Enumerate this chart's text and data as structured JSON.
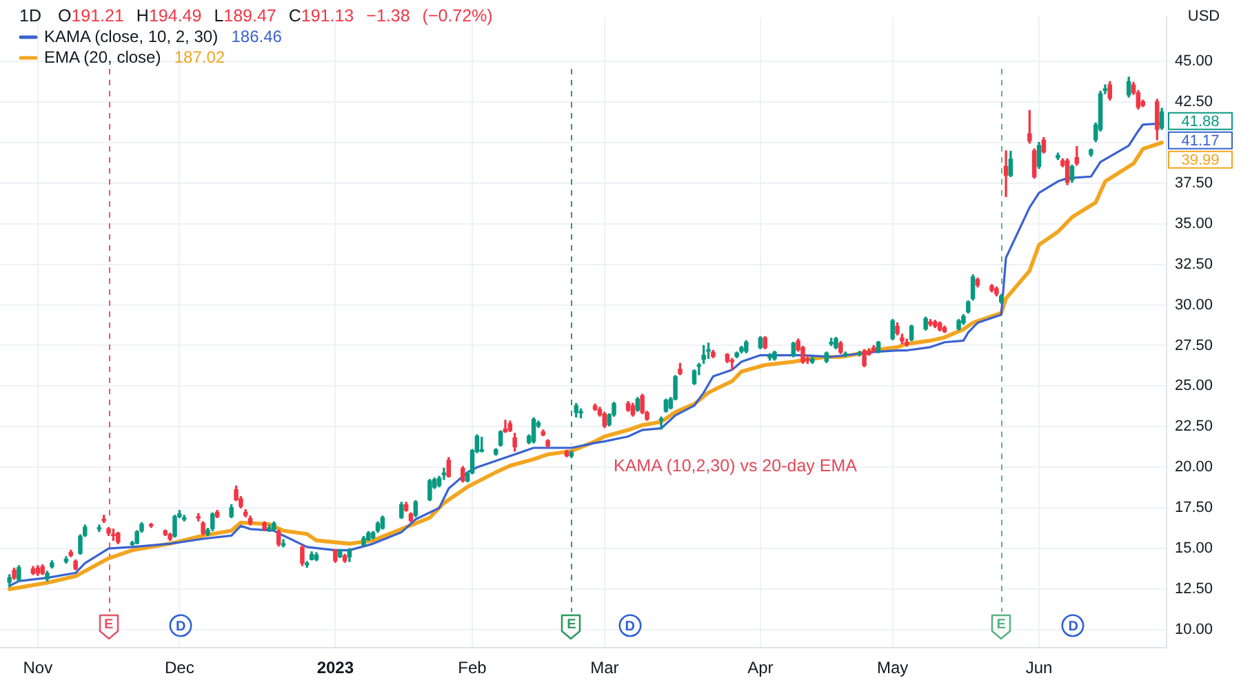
{
  "chart_data": {
    "type": "candlestick",
    "title": "1D",
    "subtitle": "O191.21 H194.49 L189.47 C191.13 −1.38 (−0.72%)",
    "ylabel": "USD",
    "x": [
      "2022-10-26",
      "2022-10-27",
      "2022-10-28",
      "2022-10-31",
      "2022-11-01",
      "2022-11-02",
      "2022-11-03",
      "2022-11-04",
      "2022-11-07",
      "2022-11-08",
      "2022-11-09",
      "2022-11-10",
      "2022-11-11",
      "2022-11-14",
      "2022-11-15",
      "2022-11-16",
      "2022-11-17",
      "2022-11-18",
      "2022-11-21",
      "2022-11-22",
      "2022-11-23",
      "2022-11-25",
      "2022-11-28",
      "2022-11-29",
      "2022-11-30",
      "2022-12-01",
      "2022-12-02",
      "2022-12-05",
      "2022-12-06",
      "2022-12-07",
      "2022-12-08",
      "2022-12-09",
      "2022-12-12",
      "2022-12-13",
      "2022-12-14",
      "2022-12-15",
      "2022-12-16",
      "2022-12-19",
      "2022-12-20",
      "2022-12-21",
      "2022-12-22",
      "2022-12-23",
      "2022-12-27",
      "2022-12-28",
      "2022-12-29",
      "2022-12-30",
      "2023-01-03",
      "2023-01-04",
      "2023-01-05",
      "2023-01-06",
      "2023-01-09",
      "2023-01-10",
      "2023-01-11",
      "2023-01-12",
      "2023-01-13",
      "2023-01-17",
      "2023-01-18",
      "2023-01-19",
      "2023-01-20",
      "2023-01-23",
      "2023-01-24",
      "2023-01-25",
      "2023-01-26",
      "2023-01-27",
      "2023-01-30",
      "2023-01-31",
      "2023-02-01",
      "2023-02-02",
      "2023-02-03",
      "2023-02-06",
      "2023-02-07",
      "2023-02-08",
      "2023-02-09",
      "2023-02-10",
      "2023-02-13",
      "2023-02-14",
      "2023-02-15",
      "2023-02-16",
      "2023-02-17",
      "2023-02-21",
      "2023-02-22",
      "2023-02-23",
      "2023-02-24",
      "2023-02-27",
      "2023-02-28",
      "2023-03-01",
      "2023-03-02",
      "2023-03-03",
      "2023-03-06",
      "2023-03-07",
      "2023-03-08",
      "2023-03-09",
      "2023-03-10",
      "2023-03-13",
      "2023-03-14",
      "2023-03-15",
      "2023-03-16",
      "2023-03-17",
      "2023-03-20",
      "2023-03-21",
      "2023-03-22",
      "2023-03-23",
      "2023-03-24",
      "2023-03-27",
      "2023-03-28",
      "2023-03-29",
      "2023-03-30",
      "2023-03-31",
      "2023-04-03",
      "2023-04-04",
      "2023-04-05",
      "2023-04-06",
      "2023-04-10",
      "2023-04-11",
      "2023-04-12",
      "2023-04-13",
      "2023-04-14",
      "2023-04-17",
      "2023-04-18",
      "2023-04-19",
      "2023-04-20",
      "2023-04-21",
      "2023-04-24",
      "2023-04-25",
      "2023-04-26",
      "2023-04-27",
      "2023-04-28",
      "2023-05-01",
      "2023-05-02",
      "2023-05-03",
      "2023-05-04",
      "2023-05-05",
      "2023-05-08",
      "2023-05-09",
      "2023-05-10",
      "2023-05-11",
      "2023-05-12",
      "2023-05-15",
      "2023-05-16",
      "2023-05-17",
      "2023-05-18",
      "2023-05-19",
      "2023-05-22",
      "2023-05-23",
      "2023-05-24",
      "2023-05-25",
      "2023-05-26",
      "2023-05-30",
      "2023-05-31",
      "2023-06-01",
      "2023-06-02",
      "2023-06-05",
      "2023-06-06",
      "2023-06-07",
      "2023-06-08",
      "2023-06-09",
      "2023-06-12",
      "2023-06-13",
      "2023-06-14",
      "2023-06-15",
      "2023-06-16",
      "2023-06-20",
      "2023-06-21",
      "2023-06-22",
      "2023-06-23",
      "2023-06-26",
      "2023-06-27"
    ],
    "ohlc": [
      [
        12.93,
        13.39,
        12.65,
        13.2
      ],
      [
        13.67,
        13.8,
        13.1,
        13.2
      ],
      [
        13.06,
        13.95,
        12.98,
        13.83
      ],
      [
        13.75,
        13.9,
        13.4,
        13.48
      ],
      [
        13.8,
        13.95,
        13.35,
        13.48
      ],
      [
        13.89,
        14.0,
        13.4,
        13.48
      ],
      [
        13.12,
        13.6,
        13.0,
        13.48
      ],
      [
        13.89,
        14.25,
        13.8,
        14.11
      ],
      [
        14.2,
        14.5,
        14.1,
        14.35
      ],
      [
        14.77,
        14.9,
        14.5,
        14.58
      ],
      [
        14.22,
        14.3,
        13.7,
        13.75
      ],
      [
        14.71,
        15.85,
        14.65,
        15.76
      ],
      [
        15.81,
        16.45,
        15.75,
        16.31
      ],
      [
        16.2,
        16.45,
        16.05,
        16.28
      ],
      [
        16.78,
        17.05,
        16.6,
        16.72
      ],
      [
        16.22,
        16.3,
        15.8,
        15.95
      ],
      [
        15.85,
        16.2,
        15.5,
        15.8
      ],
      [
        15.95,
        16.0,
        15.3,
        15.4
      ],
      [
        15.25,
        15.45,
        15.2,
        15.35
      ],
      [
        15.32,
        16.1,
        15.3,
        16.03
      ],
      [
        16.09,
        16.6,
        16.0,
        16.5
      ],
      [
        16.45,
        16.55,
        16.3,
        16.4
      ],
      [
        16.09,
        16.15,
        15.8,
        15.87
      ],
      [
        15.87,
        15.95,
        15.5,
        15.59
      ],
      [
        15.76,
        17.05,
        15.7,
        16.97
      ],
      [
        16.97,
        17.35,
        16.9,
        17.13
      ],
      [
        16.8,
        17.05,
        16.7,
        16.9
      ],
      [
        16.95,
        17.15,
        16.7,
        16.88
      ],
      [
        16.56,
        16.65,
        15.85,
        15.95
      ],
      [
        15.87,
        16.25,
        15.8,
        16.14
      ],
      [
        16.23,
        17.2,
        16.1,
        17.13
      ],
      [
        17.24,
        17.35,
        16.9,
        16.97
      ],
      [
        16.97,
        17.7,
        16.9,
        17.52
      ],
      [
        18.62,
        18.85,
        17.95,
        18.01
      ],
      [
        18.07,
        18.2,
        17.5,
        17.6
      ],
      [
        17.24,
        17.4,
        16.95,
        17.05
      ],
      [
        16.85,
        17.0,
        16.45,
        16.55
      ],
      [
        16.58,
        16.65,
        16.1,
        16.22
      ],
      [
        16.2,
        16.45,
        16.05,
        16.28
      ],
      [
        16.18,
        16.65,
        16.1,
        16.55
      ],
      [
        16.05,
        16.15,
        15.15,
        15.26
      ],
      [
        15.2,
        15.55,
        15.1,
        15.3
      ],
      [
        15.08,
        15.2,
        13.95,
        14.1
      ],
      [
        14.0,
        14.2,
        13.85,
        14.1
      ],
      [
        14.33,
        14.8,
        14.3,
        14.64
      ],
      [
        14.33,
        14.75,
        14.25,
        14.6
      ],
      [
        14.9,
        14.95,
        14.15,
        14.25
      ],
      [
        14.5,
        14.95,
        14.45,
        14.85
      ],
      [
        14.55,
        14.65,
        14.15,
        14.25
      ],
      [
        14.49,
        15.0,
        14.2,
        14.9
      ],
      [
        15.22,
        15.75,
        15.15,
        15.63
      ],
      [
        15.55,
        16.05,
        15.5,
        15.95
      ],
      [
        15.67,
        16.05,
        15.6,
        15.98
      ],
      [
        16.1,
        16.65,
        16.0,
        16.55
      ],
      [
        16.25,
        17.0,
        16.2,
        16.91
      ],
      [
        16.91,
        17.85,
        16.85,
        17.7
      ],
      [
        17.7,
        17.85,
        17.3,
        17.35
      ],
      [
        17.13,
        17.2,
        16.65,
        16.72
      ],
      [
        17.05,
        17.95,
        16.95,
        17.87
      ],
      [
        18.01,
        19.25,
        17.95,
        19.17
      ],
      [
        18.78,
        19.35,
        18.7,
        19.25
      ],
      [
        18.89,
        19.45,
        18.8,
        19.33
      ],
      [
        19.55,
        19.95,
        19.25,
        19.65
      ],
      [
        20.43,
        20.6,
        19.4,
        19.44
      ],
      [
        19.94,
        20.05,
        19.1,
        19.17
      ],
      [
        19.17,
        19.7,
        19.1,
        19.61
      ],
      [
        19.66,
        21.1,
        19.6,
        21.04
      ],
      [
        20.98,
        22.0,
        20.9,
        21.92
      ],
      [
        20.98,
        21.85,
        20.95,
        21.09
      ],
      [
        20.82,
        21.15,
        20.75,
        21.09
      ],
      [
        21.37,
        22.25,
        21.3,
        22.19
      ],
      [
        22.36,
        22.9,
        22.15,
        22.19
      ],
      [
        22.69,
        22.85,
        22.2,
        22.27
      ],
      [
        21.81,
        22.1,
        21.0,
        21.26
      ],
      [
        21.53,
        22.0,
        21.45,
        21.92
      ],
      [
        21.59,
        23.05,
        21.5,
        22.96
      ],
      [
        22.55,
        22.85,
        22.45,
        22.74
      ],
      [
        22.19,
        22.3,
        21.95,
        22.0
      ],
      [
        21.64,
        21.7,
        21.25,
        21.31
      ],
      [
        20.98,
        21.05,
        20.65,
        20.71
      ],
      [
        20.7,
        21.0,
        20.6,
        20.9
      ],
      [
        23.38,
        23.93,
        23.1,
        23.79
      ],
      [
        23.35,
        23.6,
        23.05,
        23.4
      ],
      [
        23.79,
        23.9,
        23.5,
        23.57
      ],
      [
        23.57,
        23.7,
        23.15,
        23.24
      ],
      [
        23.29,
        23.4,
        22.45,
        22.55
      ],
      [
        22.63,
        23.3,
        22.55,
        23.24
      ],
      [
        23.24,
        24.0,
        23.15,
        23.93
      ],
      [
        23.93,
        24.05,
        23.45,
        23.52
      ],
      [
        23.79,
        23.95,
        23.15,
        23.24
      ],
      [
        23.52,
        24.3,
        23.45,
        24.2
      ],
      [
        24.4,
        24.5,
        23.3,
        23.38
      ],
      [
        23.38,
        23.45,
        22.9,
        22.96
      ],
      [
        22.9,
        23.1,
        22.36,
        22.95
      ],
      [
        23.46,
        24.2,
        23.4,
        24.12
      ],
      [
        23.65,
        24.3,
        23.6,
        24.2
      ],
      [
        24.2,
        25.65,
        24.15,
        25.58
      ],
      [
        26.05,
        26.4,
        25.7,
        25.77
      ],
      [
        25.17,
        26.0,
        25.1,
        25.94
      ],
      [
        26.22,
        26.4,
        25.7,
        26.3
      ],
      [
        26.65,
        27.5,
        26.4,
        26.9
      ],
      [
        27.15,
        27.65,
        26.7,
        27.22
      ],
      [
        27.09,
        27.2,
        26.75,
        26.82
      ],
      [
        26.95,
        27.0,
        26.45,
        26.54
      ],
      [
        26.6,
        26.7,
        26.0,
        26.5
      ],
      [
        26.82,
        27.1,
        26.75,
        27.04
      ],
      [
        27.15,
        27.45,
        27.05,
        27.37
      ],
      [
        27.15,
        27.8,
        27.05,
        27.7
      ],
      [
        27.37,
        28.05,
        27.3,
        27.97
      ],
      [
        27.97,
        28.05,
        27.3,
        27.37
      ],
      [
        26.75,
        27.0,
        26.6,
        26.85
      ],
      [
        26.68,
        27.15,
        26.6,
        27.09
      ],
      [
        26.87,
        27.7,
        26.8,
        27.64
      ],
      [
        27.78,
        27.9,
        27.15,
        27.23
      ],
      [
        27.37,
        27.45,
        26.4,
        26.49
      ],
      [
        26.65,
        26.85,
        26.4,
        26.58
      ],
      [
        26.49,
        26.8,
        26.4,
        26.68
      ],
      [
        26.54,
        27.1,
        26.45,
        27.04
      ],
      [
        27.6,
        27.95,
        27.5,
        27.7
      ],
      [
        27.37,
        28.0,
        27.3,
        27.92
      ],
      [
        27.64,
        27.75,
        27.0,
        27.09
      ],
      [
        26.9,
        27.1,
        26.8,
        27.0
      ],
      [
        26.95,
        27.15,
        26.85,
        27.05
      ],
      [
        27.15,
        27.25,
        26.2,
        26.27
      ],
      [
        27.15,
        27.3,
        26.9,
        26.95
      ],
      [
        27.37,
        27.5,
        27.1,
        27.2
      ],
      [
        27.15,
        27.75,
        27.05,
        27.7
      ],
      [
        27.92,
        29.1,
        27.85,
        29.02
      ],
      [
        28.69,
        28.9,
        28.15,
        28.25
      ],
      [
        27.97,
        28.2,
        27.6,
        27.78
      ],
      [
        27.7,
        27.9,
        27.45,
        27.55
      ],
      [
        27.86,
        28.75,
        27.8,
        28.69
      ],
      [
        28.52,
        29.25,
        28.45,
        29.16
      ],
      [
        28.96,
        29.1,
        28.7,
        28.8
      ],
      [
        28.96,
        29.05,
        28.6,
        28.69
      ],
      [
        28.88,
        28.95,
        28.4,
        28.47
      ],
      [
        28.6,
        28.7,
        28.3,
        28.35
      ],
      [
        28.53,
        29.1,
        28.45,
        29.02
      ],
      [
        28.9,
        29.4,
        28.8,
        29.3
      ],
      [
        29.57,
        30.25,
        29.5,
        30.18
      ],
      [
        30.4,
        31.85,
        30.3,
        31.72
      ],
      [
        31.56,
        31.65,
        31.1,
        31.22
      ],
      [
        31.17,
        31.25,
        30.8,
        30.9
      ],
      [
        31.0,
        31.1,
        30.55,
        30.67
      ],
      [
        30.18,
        30.65,
        30.1,
        30.54
      ],
      [
        38.52,
        39.48,
        36.67,
        37.97
      ],
      [
        37.97,
        39.45,
        37.9,
        38.98
      ],
      [
        40.53,
        41.96,
        39.95,
        40.09
      ],
      [
        39.48,
        39.6,
        37.8,
        37.88
      ],
      [
        38.52,
        40.0,
        38.4,
        39.81
      ],
      [
        40.14,
        40.3,
        39.35,
        39.42
      ],
      [
        39.06,
        39.35,
        38.95,
        39.2
      ],
      [
        38.87,
        39.0,
        38.5,
        38.6
      ],
      [
        38.87,
        39.0,
        37.4,
        37.55
      ],
      [
        37.69,
        38.6,
        37.55,
        38.52
      ],
      [
        39.07,
        39.75,
        38.6,
        38.71
      ],
      [
        39.26,
        39.6,
        39.15,
        39.54
      ],
      [
        40.17,
        41.2,
        40.05,
        41.08
      ],
      [
        40.8,
        43.15,
        40.7,
        43.0
      ],
      [
        43.2,
        43.55,
        43.0,
        43.3
      ],
      [
        43.55,
        43.75,
        42.6,
        42.73
      ],
      [
        42.92,
        44.02,
        42.8,
        43.75
      ],
      [
        43.55,
        43.7,
        42.95,
        43.06
      ],
      [
        43.06,
        43.2,
        42.05,
        42.18
      ],
      [
        42.51,
        42.6,
        42.2,
        42.29
      ],
      [
        42.51,
        42.65,
        40.17,
        40.8
      ],
      [
        40.9,
        42.1,
        40.8,
        41.88
      ]
    ],
    "series": [
      {
        "type": "line",
        "name": "KAMA (close, 10, 2, 30)",
        "color": "#3a62d0",
        "x": [
          "2022-10-26",
          "2022-10-28",
          "2022-11-03",
          "2022-11-09",
          "2022-11-11",
          "2022-11-16",
          "2022-11-21",
          "2022-11-29",
          "2022-12-06",
          "2022-12-12",
          "2022-12-14",
          "2022-12-16",
          "2022-12-21",
          "2022-12-23",
          "2022-12-28",
          "2023-01-03",
          "2023-01-06",
          "2023-01-11",
          "2023-01-17",
          "2023-01-20",
          "2023-01-25",
          "2023-01-27",
          "2023-01-31",
          "2023-02-02",
          "2023-02-07",
          "2023-02-10",
          "2023-02-14",
          "2023-02-22",
          "2023-02-27",
          "2023-03-01",
          "2023-03-06",
          "2023-03-09",
          "2023-03-13",
          "2023-03-16",
          "2023-03-20",
          "2023-03-22",
          "2023-03-24",
          "2023-03-28",
          "2023-03-30",
          "2023-04-03",
          "2023-04-12",
          "2023-04-18",
          "2023-04-24",
          "2023-04-27",
          "2023-05-02",
          "2023-05-04",
          "2023-05-09",
          "2023-05-12",
          "2023-05-16",
          "2023-05-17",
          "2023-05-19",
          "2023-05-24",
          "2023-05-25",
          "2023-05-30",
          "2023-06-01",
          "2023-06-05",
          "2023-06-07",
          "2023-06-12",
          "2023-06-14",
          "2023-06-20",
          "2023-06-22",
          "2023-06-23",
          "2023-06-27"
        ],
        "values": [
          12.7,
          13.0,
          13.2,
          13.5,
          14.1,
          15.0,
          15.1,
          15.3,
          15.6,
          15.8,
          16.4,
          16.2,
          16.1,
          15.8,
          15.1,
          14.9,
          14.9,
          15.3,
          16.0,
          16.8,
          17.5,
          18.7,
          19.7,
          20.0,
          20.5,
          20.8,
          21.2,
          21.2,
          21.5,
          21.6,
          21.9,
          22.3,
          22.4,
          23.2,
          23.8,
          24.6,
          25.6,
          26.0,
          26.5,
          26.9,
          26.9,
          26.8,
          27.0,
          27.1,
          27.2,
          27.2,
          27.4,
          27.7,
          27.8,
          28.3,
          28.9,
          29.4,
          32.9,
          36.0,
          36.9,
          37.6,
          37.8,
          37.9,
          38.8,
          39.8,
          40.7,
          41.1,
          41.17
        ],
        "value_labels": [
          null,
          null,
          null,
          null,
          null,
          null,
          null,
          null,
          null,
          null,
          null,
          null,
          null,
          null,
          null,
          null,
          null,
          null,
          null,
          null,
          null,
          null,
          null,
          null,
          null,
          null,
          null,
          null,
          null,
          null,
          null,
          null,
          null,
          null,
          null,
          null,
          null,
          null,
          null,
          null,
          null,
          null,
          null,
          null,
          null,
          null,
          null,
          null,
          null,
          null,
          null,
          null,
          null,
          null,
          null,
          null,
          null,
          null,
          null,
          null,
          null,
          null,
          "41.17"
        ]
      },
      {
        "type": "line",
        "name": "EMA (20, close)",
        "color": "#f2a51f",
        "x": [
          "2022-10-26",
          "2022-11-03",
          "2022-11-09",
          "2022-11-16",
          "2022-11-21",
          "2022-11-29",
          "2022-12-06",
          "2022-12-12",
          "2022-12-14",
          "2022-12-20",
          "2022-12-23",
          "2022-12-28",
          "2022-12-30",
          "2023-01-06",
          "2023-01-11",
          "2023-01-17",
          "2023-01-23",
          "2023-01-26",
          "2023-01-31",
          "2023-02-06",
          "2023-02-09",
          "2023-02-14",
          "2023-02-17",
          "2023-02-22",
          "2023-02-27",
          "2023-03-01",
          "2023-03-06",
          "2023-03-09",
          "2023-03-13",
          "2023-03-16",
          "2023-03-20",
          "2023-03-23",
          "2023-03-28",
          "2023-03-30",
          "2023-04-04",
          "2023-04-10",
          "2023-04-12",
          "2023-04-17",
          "2023-04-20",
          "2023-04-24",
          "2023-04-27",
          "2023-05-02",
          "2023-05-04",
          "2023-05-09",
          "2023-05-12",
          "2023-05-16",
          "2023-05-18",
          "2023-05-24",
          "2023-05-25",
          "2023-05-30",
          "2023-06-01",
          "2023-06-05",
          "2023-06-08",
          "2023-06-13",
          "2023-06-15",
          "2023-06-21",
          "2023-06-23",
          "2023-06-27"
        ],
        "values": [
          12.5,
          12.9,
          13.3,
          14.4,
          14.9,
          15.3,
          15.8,
          16.1,
          16.6,
          16.5,
          16.1,
          15.9,
          15.5,
          15.3,
          15.5,
          16.2,
          16.9,
          17.8,
          18.8,
          19.7,
          20.1,
          20.5,
          20.8,
          21.0,
          21.6,
          21.9,
          22.3,
          22.6,
          22.8,
          23.4,
          23.9,
          24.6,
          25.3,
          25.9,
          26.3,
          26.5,
          26.6,
          26.8,
          26.8,
          27.0,
          27.2,
          27.4,
          27.6,
          27.8,
          28.0,
          28.5,
          28.9,
          29.5,
          30.4,
          32.1,
          33.7,
          34.5,
          35.4,
          36.3,
          37.6,
          38.7,
          39.6,
          39.99
        ],
        "value_labels": [
          null,
          null,
          null,
          null,
          null,
          null,
          null,
          null,
          null,
          null,
          null,
          null,
          null,
          null,
          null,
          null,
          null,
          null,
          null,
          null,
          null,
          null,
          null,
          null,
          null,
          null,
          null,
          null,
          null,
          null,
          null,
          null,
          null,
          null,
          null,
          null,
          null,
          null,
          null,
          null,
          null,
          null,
          null,
          null,
          null,
          null,
          null,
          null,
          null,
          null,
          null,
          null,
          null,
          null,
          null,
          null,
          null,
          "39.99"
        ]
      }
    ],
    "xlim": [
      "2022-10-24",
      "2023-06-28"
    ],
    "xticks": [
      {
        "value": "2022-11-01",
        "label": "Nov"
      },
      {
        "value": "2022-12-01",
        "label": "Dec"
      },
      {
        "value": "2023-01-03",
        "label": "2023"
      },
      {
        "value": "2023-02-01",
        "label": "Feb"
      },
      {
        "value": "2023-03-01",
        "label": "Mar"
      },
      {
        "value": "2023-04-03",
        "label": "Apr"
      },
      {
        "value": "2023-05-01",
        "label": "May"
      },
      {
        "value": "2023-06-01",
        "label": "Jun"
      }
    ],
    "ylim": [
      8.9,
      47.7
    ],
    "yticks": [
      {
        "value": 10,
        "label": "10.00"
      },
      {
        "value": 12.5,
        "label": "12.50"
      },
      {
        "value": 15,
        "label": "15.00"
      },
      {
        "value": 17.5,
        "label": "17.50"
      },
      {
        "value": 20,
        "label": "20.00"
      },
      {
        "value": 22.5,
        "label": "22.50"
      },
      {
        "value": 25,
        "label": "25.00"
      },
      {
        "value": 27.5,
        "label": "27.50"
      },
      {
        "value": 30,
        "label": "30.00"
      },
      {
        "value": 32.5,
        "label": "32.50"
      },
      {
        "value": 35,
        "label": "35.00"
      },
      {
        "value": 37.5,
        "label": "37.50"
      },
      {
        "value": 40,
        "label": null
      },
      {
        "value": 42.5,
        "label": "42.50"
      },
      {
        "value": 45,
        "label": "45.00"
      }
    ],
    "ref_lines": [
      {
        "axis": "x",
        "value": "2022-11-16",
        "label": "E",
        "color": "#e2566a",
        "line_style": "dashed"
      },
      {
        "axis": "x",
        "value": "2023-02-22",
        "label": "E",
        "color": "#2e9a5c",
        "line_style": "dashed"
      },
      {
        "axis": "x",
        "value": "2023-05-24",
        "label": "E",
        "color": "#58b485",
        "line_style": "dashed"
      }
    ],
    "annotations": [
      "186.46",
      "187.02",
      "KAMA (10,2,30) vs 20-day EMA",
      "D",
      "D",
      "D",
      {
        "text": "41.88",
        "x": "2023-06-27",
        "y": 41.88
      }
    ],
    "grid": true,
    "legend": "top left"
  }
}
